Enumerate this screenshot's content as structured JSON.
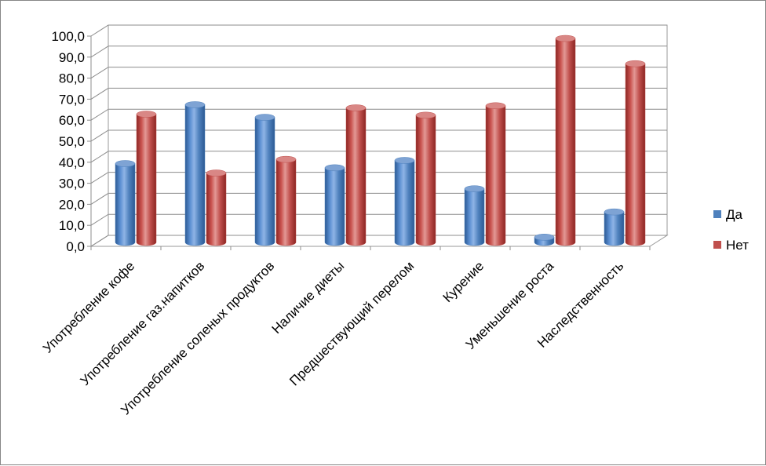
{
  "chart_data": {
    "type": "bar",
    "categories": [
      "Употребление кофе",
      "Употребление газ.напитков",
      "Употребление соленых продуктов",
      "Наличие диеты",
      "Предшествующий перелом",
      "Курение",
      "Уменьшение роста",
      "Наследственность"
    ],
    "series": [
      {
        "name": "Да",
        "color": "#4f81bd",
        "values": [
          37.5,
          65.5,
          59.5,
          35.5,
          39,
          25.5,
          2.5,
          14.5
        ]
      },
      {
        "name": "Нет",
        "color": "#c0504d",
        "values": [
          61,
          33,
          39.5,
          64,
          60.5,
          65,
          97,
          85
        ]
      }
    ],
    "yticks": [
      "0,0",
      "10,0",
      "20,0",
      "30,0",
      "40,0",
      "50,0",
      "60,0",
      "70,0",
      "80,0",
      "90,0",
      "100,0"
    ],
    "ylim": [
      0,
      100
    ],
    "grid": true,
    "legend": "right"
  }
}
